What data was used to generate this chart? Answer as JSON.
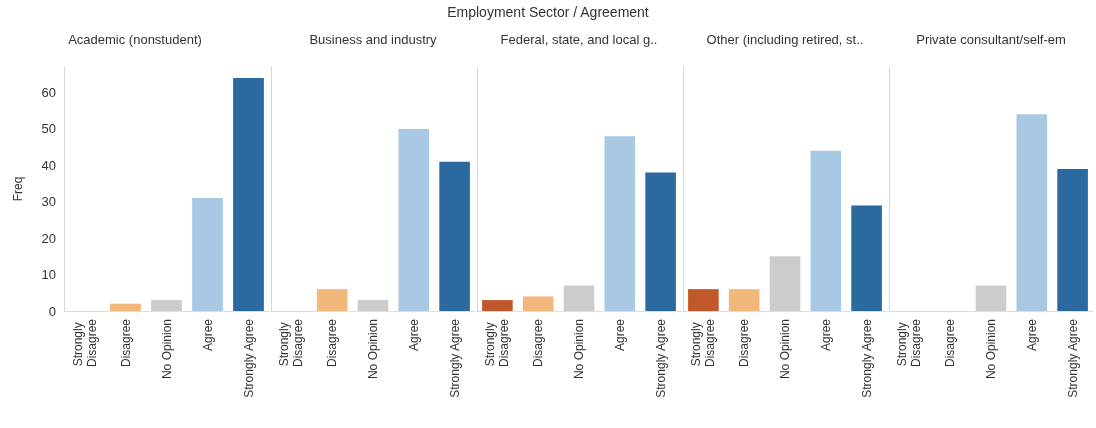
{
  "chart_data": [
    {
      "type": "bar",
      "title": "Academic (nonstudent)",
      "ylabel": "Freq",
      "annotations": [
        "Employment Sector  /  Agreement"
      ],
      "categories": [
        "Strongly Disagree",
        "Disagree",
        "No Opinion",
        "Agree",
        "Strongly Agree"
      ],
      "values": [
        0,
        2,
        3,
        31,
        64
      ],
      "colors": [
        "#c0582b",
        "#f2b77b",
        "#cccccc",
        "#a8c8e4",
        "#2a6a9e"
      ],
      "ylim": [
        0,
        67
      ],
      "yticks": [
        0,
        10,
        20,
        30,
        40,
        50,
        60
      ]
    },
    {
      "type": "bar",
      "title": "Business and industry",
      "categories": [
        "Strongly Disagree",
        "Disagree",
        "No Opinion",
        "Agree",
        "Strongly Agree"
      ],
      "values": [
        0,
        6,
        3,
        50,
        41
      ],
      "colors": [
        "#c0582b",
        "#f2b77b",
        "#cccccc",
        "#a8c8e4",
        "#2a6a9e"
      ],
      "ylim": [
        0,
        67
      ],
      "yticks": [
        0,
        10,
        20,
        30,
        40,
        50,
        60
      ],
      "tick_labels": "x"
    },
    {
      "type": "bar",
      "title": "Federal, state, and local g..",
      "categories": [
        "Strongly Disagree",
        "Disagree",
        "No Opinion",
        "Agree",
        "Strongly Agree"
      ],
      "values": [
        3,
        4,
        7,
        48,
        38
      ],
      "colors": [
        "#c0582b",
        "#f2b77b",
        "#cccccc",
        "#a8c8e4",
        "#2a6a9e"
      ],
      "ylim": [
        0,
        67
      ],
      "yticks": [
        0,
        10,
        20,
        30,
        40,
        50,
        60
      ],
      "tick_labels": "x"
    },
    {
      "type": "bar",
      "title": "Other (including retired, st..",
      "categories": [
        "Strongly Disagree",
        "Disagree",
        "No Opinion",
        "Agree",
        "Strongly Agree"
      ],
      "values": [
        6,
        6,
        15,
        44,
        29
      ],
      "colors": [
        "#c0582b",
        "#f2b77b",
        "#cccccc",
        "#a8c8e4",
        "#2a6a9e"
      ],
      "ylim": [
        0,
        67
      ],
      "yticks": [
        0,
        10,
        20,
        30,
        40,
        50,
        60
      ],
      "tick_labels": "x"
    },
    {
      "type": "bar",
      "title": "Private consultant/self-em",
      "categories": [
        "Strongly Disagree",
        "Disagree",
        "No Opinion",
        "Agree",
        "Strongly Agree"
      ],
      "values": [
        0,
        0,
        7,
        54,
        39
      ],
      "colors": [
        "#c0582b",
        "#f2b77b",
        "#cccccc",
        "#a8c8e4",
        "#2a6a9e"
      ],
      "ylim": [
        0,
        67
      ],
      "yticks": [
        0,
        10,
        20,
        30,
        40,
        50,
        60
      ],
      "tick_labels": "x"
    }
  ]
}
